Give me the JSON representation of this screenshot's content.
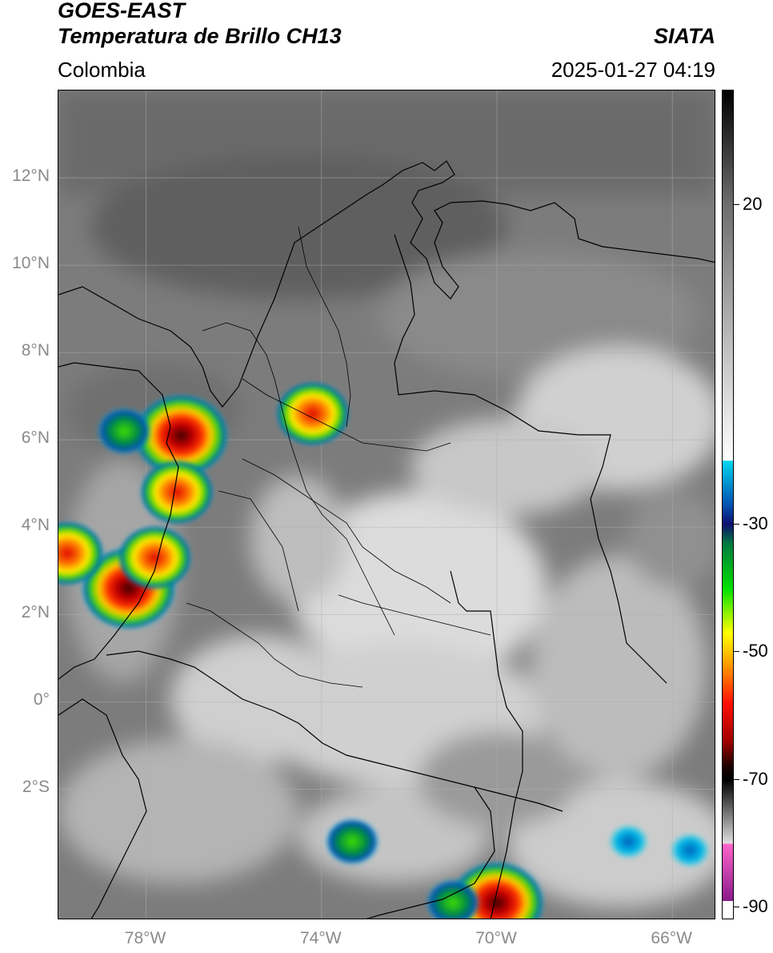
{
  "header": {
    "satellite": "GOES-EAST",
    "product": "Temperatura de Brillo CH13",
    "region": "Colombia",
    "agency": "SIATA",
    "timestamp": "2025-01-27 04:19"
  },
  "map": {
    "lon_range": [
      -80,
      -65
    ],
    "lat_range": [
      -5,
      14
    ],
    "lat_ticks": [
      {
        "value": 12,
        "label": "12°N"
      },
      {
        "value": 10,
        "label": "10°N"
      },
      {
        "value": 8,
        "label": "8°N"
      },
      {
        "value": 6,
        "label": "6°N"
      },
      {
        "value": 4,
        "label": "4°N"
      },
      {
        "value": 2,
        "label": "2°N"
      },
      {
        "value": 0,
        "label": "0°"
      },
      {
        "value": -2,
        "label": "2°S"
      }
    ],
    "lon_ticks": [
      {
        "value": -78,
        "label": "78°W"
      },
      {
        "value": -74,
        "label": "74°W"
      },
      {
        "value": -70,
        "label": "70°W"
      },
      {
        "value": -66,
        "label": "66°W"
      }
    ],
    "grid": true,
    "storm_cells": [
      {
        "lon": -77.2,
        "lat": 6.1,
        "intensity": "very-cold"
      },
      {
        "lon": -74.2,
        "lat": 6.6,
        "intensity": "cold"
      },
      {
        "lon": -77.3,
        "lat": 4.8,
        "intensity": "cold"
      },
      {
        "lon": -78.4,
        "lat": 2.6,
        "intensity": "very-cold"
      },
      {
        "lon": -77.8,
        "lat": 3.3,
        "intensity": "cold"
      },
      {
        "lon": -78.5,
        "lat": 6.2,
        "intensity": "moderate"
      },
      {
        "lon": -70.0,
        "lat": -4.6,
        "intensity": "very-cold"
      },
      {
        "lon": -71.0,
        "lat": -4.6,
        "intensity": "moderate"
      },
      {
        "lon": -73.3,
        "lat": -3.2,
        "intensity": "moderate"
      },
      {
        "lon": -67.0,
        "lat": -3.2,
        "intensity": "weak"
      },
      {
        "lon": -65.6,
        "lat": -3.4,
        "intensity": "weak"
      },
      {
        "lon": -79.8,
        "lat": 3.4,
        "intensity": "cold"
      }
    ]
  },
  "colorbar": {
    "unit": "°C",
    "range": [
      -92,
      38
    ],
    "ticks": [
      {
        "value": 20,
        "label": "20"
      },
      {
        "value": -30,
        "label": "-30"
      },
      {
        "value": -50,
        "label": "-50"
      },
      {
        "value": -70,
        "label": "-70"
      },
      {
        "value": -90,
        "label": "-90"
      }
    ],
    "stops": [
      {
        "value": 38,
        "color": "#000000"
      },
      {
        "value": 20,
        "color": "#6e6e6e"
      },
      {
        "value": -20,
        "color": "#ffffff"
      },
      {
        "value": -20.01,
        "color": "#00d6f0"
      },
      {
        "value": -27,
        "color": "#0050b0"
      },
      {
        "value": -30,
        "color": "#10106e"
      },
      {
        "value": -33,
        "color": "#007a40"
      },
      {
        "value": -40,
        "color": "#00e000"
      },
      {
        "value": -47,
        "color": "#ffff00"
      },
      {
        "value": -52,
        "color": "#ff9a00"
      },
      {
        "value": -58,
        "color": "#ff1000"
      },
      {
        "value": -64,
        "color": "#a00000"
      },
      {
        "value": -68,
        "color": "#1a0000"
      },
      {
        "value": -70,
        "color": "#000000"
      },
      {
        "value": -80,
        "color": "#e0e0e0"
      },
      {
        "value": -80.01,
        "color": "#ff66cc"
      },
      {
        "value": -89,
        "color": "#8a1a8a"
      },
      {
        "value": -89.01,
        "color": "#ffffff"
      },
      {
        "value": -92,
        "color": "#ffffff"
      }
    ]
  }
}
